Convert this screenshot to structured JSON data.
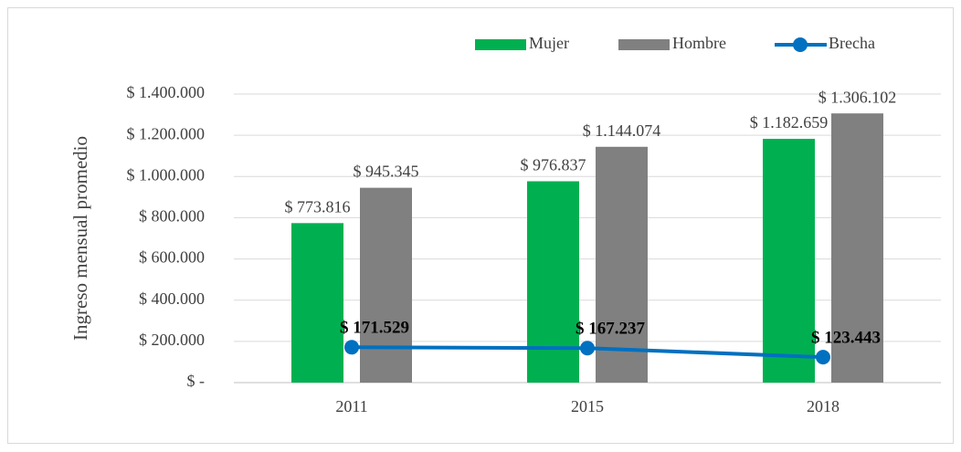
{
  "chart_data": {
    "type": "bar_line",
    "y_axis_label": "Ingreso mensual promedio",
    "categories": [
      "2011",
      "2015",
      "2018"
    ],
    "series": [
      {
        "name": "Mujer",
        "type": "bar",
        "color": "#00b050",
        "values": [
          773816,
          976837,
          1182659
        ],
        "value_labels": [
          "$ 773.816",
          "$ 976.837",
          "$ 1.182.659"
        ]
      },
      {
        "name": "Hombre",
        "type": "bar",
        "color": "#808080",
        "values": [
          945345,
          1144074,
          1306102
        ],
        "value_labels": [
          "$ 945.345",
          "$ 1.144.074",
          "$ 1.306.102"
        ]
      },
      {
        "name": "Brecha",
        "type": "line",
        "color": "#0070c0",
        "values": [
          171529,
          167237,
          123443
        ],
        "value_labels": [
          "$ 171.529",
          "$ 167.237",
          "$ 123.443"
        ]
      }
    ],
    "ylim": [
      0,
      1400000
    ],
    "yticks": [
      {
        "value": 0,
        "label": "$ -"
      },
      {
        "value": 200000,
        "label": "$ 200.000"
      },
      {
        "value": 400000,
        "label": "$ 400.000"
      },
      {
        "value": 600000,
        "label": "$ 600.000"
      },
      {
        "value": 800000,
        "label": "$ 800.000"
      },
      {
        "value": 1000000,
        "label": "$ 1.000.000"
      },
      {
        "value": 1200000,
        "label": "$ 1.200.000"
      },
      {
        "value": 1400000,
        "label": "$ 1.400.000"
      }
    ],
    "grid": true,
    "legend": "top"
  }
}
